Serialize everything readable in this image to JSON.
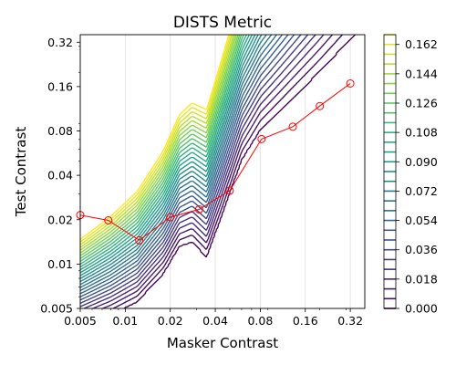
{
  "chart_data": {
    "type": "line",
    "title": "DISTS Metric",
    "xlabel": "Masker Contrast",
    "ylabel": "Test Contrast",
    "xscale": "log",
    "yscale": "log",
    "xlim": [
      0.005,
      0.4
    ],
    "ylim": [
      0.005,
      0.36
    ],
    "xticks": [
      0.005,
      0.01,
      0.02,
      0.04,
      0.08,
      0.16,
      0.32
    ],
    "xtick_labels": [
      "0.005",
      "0.01",
      "0.02",
      "0.04",
      "0.08",
      "0.16",
      "0.32"
    ],
    "yticks": [
      0.005,
      0.01,
      0.02,
      0.04,
      0.08,
      0.16,
      0.32
    ],
    "ytick_labels": [
      "0.005",
      "0.01",
      "0.02",
      "0.04",
      "0.08",
      "0.16",
      "0.32"
    ],
    "grid": "vertical",
    "series": [
      {
        "color": "#ff0000",
        "marker": "open-circle",
        "x": [
          0.005,
          0.0077,
          0.0124,
          0.02,
          0.0312,
          0.05,
          0.0816,
          0.132,
          0.2,
          0.32
        ],
        "y": [
          0.0215,
          0.0198,
          0.0145,
          0.0208,
          0.0235,
          0.0315,
          0.0705,
          0.0855,
          0.118,
          0.168
        ]
      }
    ],
    "contour": {
      "colormap": "viridis",
      "levels": [
        0.0,
        0.006,
        0.012,
        0.018,
        0.024,
        0.03,
        0.036,
        0.042,
        0.048,
        0.054,
        0.06,
        0.066,
        0.072,
        0.078,
        0.084,
        0.09,
        0.096,
        0.102,
        0.108,
        0.114,
        0.12,
        0.126,
        0.132,
        0.138,
        0.144,
        0.15,
        0.156,
        0.162,
        0.168
      ],
      "colorbar_ticks": [
        0.0,
        0.018,
        0.036,
        0.054,
        0.072,
        0.09,
        0.108,
        0.126,
        0.144,
        0.162
      ],
      "colorbar_labels": [
        "0.000",
        "0.018",
        "0.036",
        "0.054",
        "0.072",
        "0.090",
        "0.108",
        "0.126",
        "0.144",
        "0.162"
      ],
      "colorbar_position": "right"
    }
  }
}
